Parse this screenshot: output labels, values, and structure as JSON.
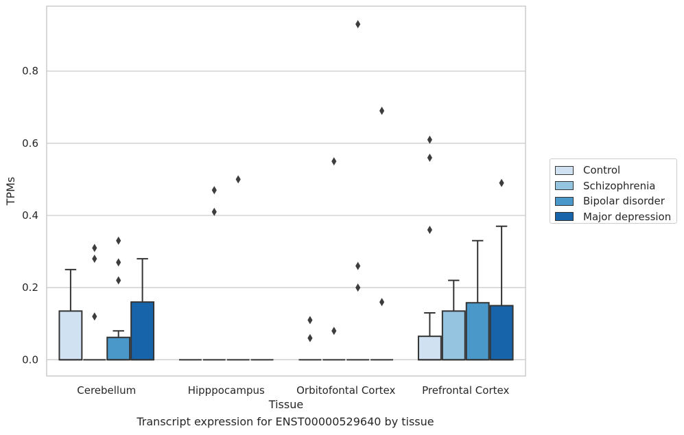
{
  "chart_data": {
    "type": "box",
    "xlabel": "Tissue",
    "ylabel": "TPMs",
    "ylim": [
      -0.045,
      0.98
    ],
    "yticks": [
      "0.0",
      "0.2",
      "0.4",
      "0.6",
      "0.8"
    ],
    "grid": true,
    "legend_placement": "right",
    "categories": [
      "Cerebellum",
      "Hipppocampus",
      "Orbitofontal Cortex",
      "Prefrontal Cortex"
    ],
    "series": [
      {
        "name": "Control",
        "color": "#d0e1f2",
        "boxes": [
          {
            "q1": 0,
            "median": 0,
            "q3": 0.135,
            "whisker_low": 0,
            "whisker_high": 0.25,
            "outliers": []
          },
          {
            "q1": 0,
            "median": 0,
            "q3": 0,
            "whisker_low": 0,
            "whisker_high": 0,
            "outliers": []
          },
          {
            "q1": 0,
            "median": 0,
            "q3": 0,
            "whisker_low": 0,
            "whisker_high": 0,
            "outliers": [
              0.06,
              0.11
            ]
          },
          {
            "q1": 0,
            "median": 0,
            "q3": 0.065,
            "whisker_low": 0,
            "whisker_high": 0.13,
            "outliers": [
              0.36,
              0.56,
              0.61
            ]
          }
        ]
      },
      {
        "name": "Schizophrenia",
        "color": "#94c4df",
        "boxes": [
          {
            "q1": 0,
            "median": 0,
            "q3": 0,
            "whisker_low": 0,
            "whisker_high": 0,
            "outliers": [
              0.12,
              0.28,
              0.31
            ]
          },
          {
            "q1": 0,
            "median": 0,
            "q3": 0,
            "whisker_low": 0,
            "whisker_high": 0,
            "outliers": [
              0.41,
              0.47
            ]
          },
          {
            "q1": 0,
            "median": 0,
            "q3": 0,
            "whisker_low": 0,
            "whisker_high": 0,
            "outliers": [
              0.08,
              0.55
            ]
          },
          {
            "q1": 0,
            "median": 0,
            "q3": 0.135,
            "whisker_low": 0,
            "whisker_high": 0.22,
            "outliers": []
          }
        ]
      },
      {
        "name": "Bipolar disorder",
        "color": "#4a98c9",
        "boxes": [
          {
            "q1": 0,
            "median": 0,
            "q3": 0.062,
            "whisker_low": 0,
            "whisker_high": 0.08,
            "outliers": [
              0.22,
              0.27,
              0.33
            ]
          },
          {
            "q1": 0,
            "median": 0,
            "q3": 0,
            "whisker_low": 0,
            "whisker_high": 0,
            "outliers": [
              0.5
            ]
          },
          {
            "q1": 0,
            "median": 0,
            "q3": 0,
            "whisker_low": 0,
            "whisker_high": 0,
            "outliers": [
              0.2,
              0.26,
              0.93
            ]
          },
          {
            "q1": 0,
            "median": 0,
            "q3": 0.158,
            "whisker_low": 0,
            "whisker_high": 0.33,
            "outliers": []
          }
        ]
      },
      {
        "name": "Major depression",
        "color": "#1764ab",
        "boxes": [
          {
            "q1": 0,
            "median": 0,
            "q3": 0.16,
            "whisker_low": 0,
            "whisker_high": 0.28,
            "outliers": []
          },
          {
            "q1": 0,
            "median": 0,
            "q3": 0,
            "whisker_low": 0,
            "whisker_high": 0,
            "outliers": []
          },
          {
            "q1": 0,
            "median": 0,
            "q3": 0,
            "whisker_low": 0,
            "whisker_high": 0,
            "outliers": [
              0.16,
              0.69
            ]
          },
          {
            "q1": 0,
            "median": 0,
            "q3": 0.15,
            "whisker_low": 0,
            "whisker_high": 0.37,
            "outliers": [
              0.49
            ]
          }
        ]
      }
    ]
  },
  "caption": "Transcript expression for ENST00000529640 by tissue"
}
